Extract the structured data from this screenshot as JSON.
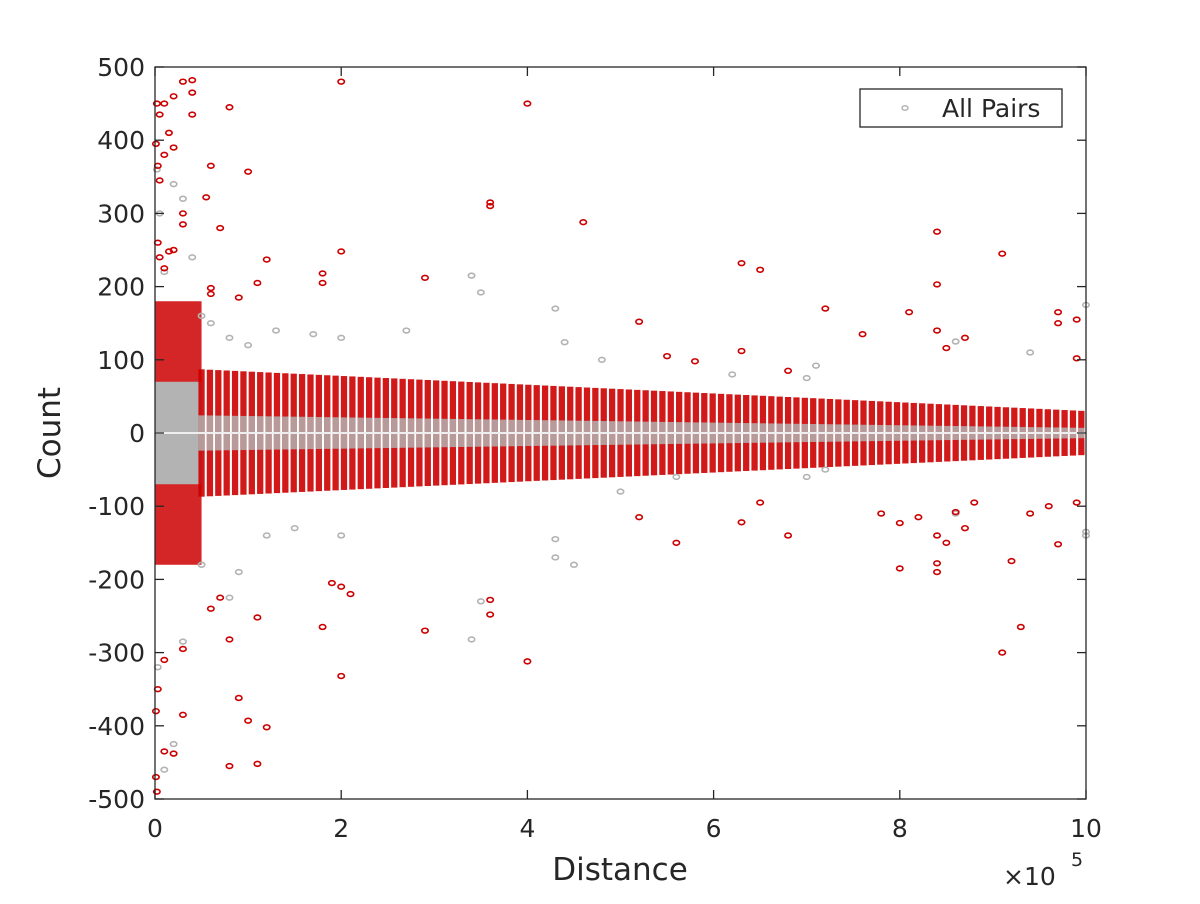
{
  "chart_data": {
    "type": "scatter",
    "xlabel": "Distance",
    "ylabel": "Count",
    "x_exponent_label": "×10",
    "x_exponent_power": "5",
    "xlim": [
      0,
      1000000
    ],
    "ylim": [
      -500,
      500
    ],
    "x_ticks": [
      0,
      200000,
      400000,
      600000,
      800000,
      1000000
    ],
    "x_tick_labels": [
      "0",
      "2",
      "4",
      "6",
      "8",
      "10"
    ],
    "y_ticks": [
      -500,
      -400,
      -300,
      -200,
      -100,
      0,
      100,
      200,
      300,
      400,
      500
    ],
    "y_tick_labels": [
      "-500",
      "-400",
      "-300",
      "-200",
      "-100",
      "0",
      "100",
      "200",
      "300",
      "400",
      "500"
    ],
    "grid": false,
    "legend": {
      "placement": "top-right",
      "entries": [
        "All Pairs"
      ]
    },
    "colors": {
      "all_pairs": "#b3b3b3",
      "highlight": "#cc0000",
      "axis": "#262626"
    },
    "series": [
      {
        "name": "All Pairs",
        "color": "#b3b3b3",
        "points": [
          [
            2000,
            360
          ],
          [
            5000,
            300
          ],
          [
            10000,
            220
          ],
          [
            20000,
            340
          ],
          [
            30000,
            320
          ],
          [
            40000,
            240
          ],
          [
            50000,
            160
          ],
          [
            60000,
            150
          ],
          [
            80000,
            130
          ],
          [
            100000,
            120
          ],
          [
            130000,
            140
          ],
          [
            170000,
            135
          ],
          [
            200000,
            130
          ],
          [
            270000,
            140
          ],
          [
            340000,
            215
          ],
          [
            350000,
            192
          ],
          [
            440000,
            124
          ],
          [
            430000,
            170
          ],
          [
            480000,
            100
          ],
          [
            620000,
            80
          ],
          [
            710000,
            92
          ],
          [
            700000,
            75
          ],
          [
            860000,
            125
          ],
          [
            940000,
            110
          ],
          [
            3000,
            -320
          ],
          [
            10000,
            -460
          ],
          [
            20000,
            -425
          ],
          [
            30000,
            -285
          ],
          [
            50000,
            -180
          ],
          [
            80000,
            -225
          ],
          [
            90000,
            -190
          ],
          [
            120000,
            -140
          ],
          [
            150000,
            -130
          ],
          [
            200000,
            -140
          ],
          [
            340000,
            -282
          ],
          [
            350000,
            -230
          ],
          [
            430000,
            -145
          ],
          [
            430000,
            -170
          ],
          [
            450000,
            -180
          ],
          [
            500000,
            -80
          ],
          [
            560000,
            -60
          ],
          [
            700000,
            -60
          ],
          [
            720000,
            -50
          ],
          [
            860000,
            -110
          ],
          [
            1000000,
            -140
          ],
          [
            1000000,
            -135
          ],
          [
            1000000,
            175
          ]
        ]
      },
      {
        "name": "",
        "color": "#cc0000",
        "points": [
          [
            2000,
            450
          ],
          [
            5000,
            435
          ],
          [
            10000,
            450
          ],
          [
            20000,
            460
          ],
          [
            30000,
            480
          ],
          [
            40000,
            482
          ],
          [
            40000,
            465
          ],
          [
            40000,
            435
          ],
          [
            80000,
            445
          ],
          [
            1000,
            395
          ],
          [
            3000,
            365
          ],
          [
            10000,
            380
          ],
          [
            15000,
            410
          ],
          [
            20000,
            390
          ],
          [
            5000,
            345
          ],
          [
            30000,
            300
          ],
          [
            30000,
            285
          ],
          [
            55000,
            322
          ],
          [
            60000,
            365
          ],
          [
            70000,
            280
          ],
          [
            100000,
            357
          ],
          [
            200000,
            480
          ],
          [
            400000,
            450
          ],
          [
            360000,
            315
          ],
          [
            360000,
            310
          ],
          [
            460000,
            288
          ],
          [
            290000,
            212
          ],
          [
            200000,
            248
          ],
          [
            180000,
            218
          ],
          [
            180000,
            205
          ],
          [
            120000,
            237
          ],
          [
            110000,
            205
          ],
          [
            60000,
            198
          ],
          [
            60000,
            190
          ],
          [
            90000,
            185
          ],
          [
            3000,
            260
          ],
          [
            5000,
            240
          ],
          [
            10000,
            225
          ],
          [
            15000,
            248
          ],
          [
            20000,
            250
          ],
          [
            520000,
            152
          ],
          [
            630000,
            232
          ],
          [
            650000,
            223
          ],
          [
            630000,
            112
          ],
          [
            720000,
            170
          ],
          [
            760000,
            135
          ],
          [
            840000,
            275
          ],
          [
            840000,
            203
          ],
          [
            810000,
            165
          ],
          [
            840000,
            140
          ],
          [
            850000,
            116
          ],
          [
            870000,
            130
          ],
          [
            910000,
            245
          ],
          [
            970000,
            165
          ],
          [
            970000,
            150
          ],
          [
            990000,
            155
          ],
          [
            990000,
            102
          ],
          [
            550000,
            105
          ],
          [
            580000,
            98
          ],
          [
            680000,
            85
          ],
          [
            1000,
            -470
          ],
          [
            2000,
            -490
          ],
          [
            1000,
            -380
          ],
          [
            3000,
            -350
          ],
          [
            10000,
            -435
          ],
          [
            20000,
            -438
          ],
          [
            30000,
            -385
          ],
          [
            30000,
            -295
          ],
          [
            10000,
            -310
          ],
          [
            80000,
            -455
          ],
          [
            90000,
            -362
          ],
          [
            100000,
            -393
          ],
          [
            110000,
            -452
          ],
          [
            120000,
            -402
          ],
          [
            110000,
            -252
          ],
          [
            80000,
            -282
          ],
          [
            70000,
            -225
          ],
          [
            60000,
            -240
          ],
          [
            180000,
            -265
          ],
          [
            190000,
            -205
          ],
          [
            200000,
            -210
          ],
          [
            210000,
            -220
          ],
          [
            200000,
            -332
          ],
          [
            290000,
            -270
          ],
          [
            360000,
            -228
          ],
          [
            360000,
            -248
          ],
          [
            400000,
            -312
          ],
          [
            560000,
            -150
          ],
          [
            630000,
            -122
          ],
          [
            520000,
            -115
          ],
          [
            800000,
            -185
          ],
          [
            840000,
            -178
          ],
          [
            840000,
            -190
          ],
          [
            840000,
            -140
          ],
          [
            850000,
            -150
          ],
          [
            910000,
            -300
          ],
          [
            930000,
            -265
          ],
          [
            920000,
            -175
          ],
          [
            970000,
            -152
          ],
          [
            990000,
            -95
          ],
          [
            960000,
            -100
          ],
          [
            940000,
            -110
          ],
          [
            880000,
            -95
          ],
          [
            800000,
            -123
          ],
          [
            780000,
            -110
          ],
          [
            870000,
            -130
          ],
          [
            860000,
            -108
          ],
          [
            820000,
            -115
          ],
          [
            680000,
            -140
          ],
          [
            650000,
            -95
          ]
        ]
      }
    ]
  }
}
